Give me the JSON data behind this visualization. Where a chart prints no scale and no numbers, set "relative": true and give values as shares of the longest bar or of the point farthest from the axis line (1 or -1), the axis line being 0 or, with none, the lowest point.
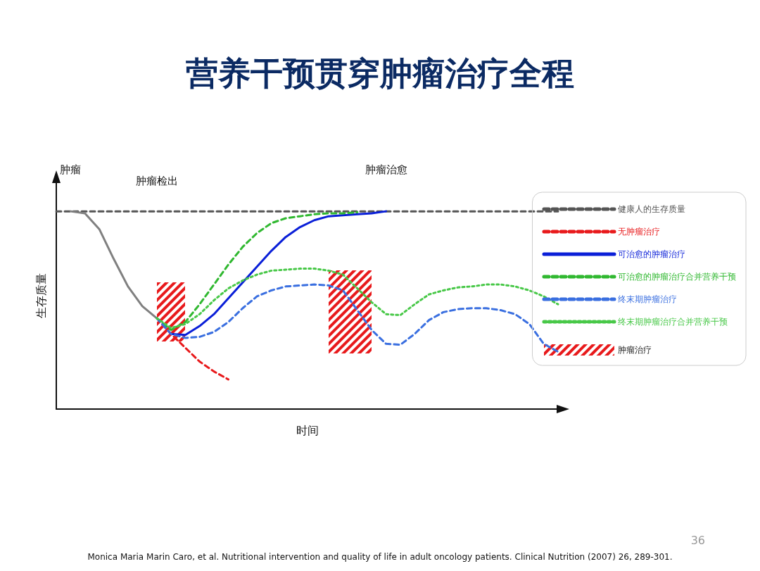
{
  "chart_data": {
    "type": "line",
    "title": "营养干预贯穿肿瘤治疗全程",
    "xlabel": "时间",
    "ylabel": "生存质量",
    "relative": true,
    "grid": false,
    "legend": "right",
    "marker": "none",
    "categories": [
      null,
      null,
      null,
      null,
      null,
      null,
      null,
      null,
      null,
      null,
      null,
      null,
      null,
      null,
      null,
      null,
      null,
      null,
      null,
      null,
      null,
      null,
      null,
      null,
      null,
      null,
      null,
      null,
      null,
      null,
      null,
      null,
      null,
      null,
      null,
      null
    ],
    "series": [
      {
        "name": "健康人的生存质量",
        "color": "#555555",
        "line_style": "dashed",
        "values": [
          1.0,
          1.0,
          1.0,
          1.0,
          1.0,
          1.0,
          1.0,
          1.0,
          1.0,
          1.0,
          1.0,
          1.0,
          1.0,
          1.0,
          1.0,
          1.0,
          1.0,
          1.0,
          1.0,
          1.0,
          1.0,
          1.0,
          1.0,
          1.0,
          1.0,
          1.0,
          1.0,
          1.0,
          1.0,
          1.0,
          1.0,
          1.0,
          1.0,
          1.0,
          1.0,
          1.0
        ]
      },
      {
        "color": "#808080",
        "line_style": "solid",
        "values": [
          null,
          1.0,
          0.99,
          0.91,
          0.76,
          0.62,
          0.52,
          0.46,
          null,
          null,
          null,
          null,
          null,
          null,
          null,
          null,
          null,
          null,
          null,
          null,
          null,
          null,
          null,
          null,
          null,
          null,
          null,
          null,
          null,
          null,
          null,
          null,
          null,
          null,
          null,
          null
        ]
      },
      {
        "name": "无肿瘤治疗",
        "color": "#e8191b",
        "line_style": "dashed",
        "values": [
          null,
          null,
          null,
          null,
          null,
          null,
          null,
          0.46,
          0.38,
          0.31,
          0.24,
          0.19,
          0.15,
          null,
          null,
          null,
          null,
          null,
          null,
          null,
          null,
          null,
          null,
          null,
          null,
          null,
          null,
          null,
          null,
          null,
          null,
          null,
          null,
          null,
          null,
          null
        ]
      },
      {
        "name": "可治愈的肿瘤治疗",
        "color": "#0a1fd8",
        "line_style": "solid",
        "values": [
          null,
          null,
          null,
          null,
          null,
          null,
          null,
          null,
          0.38,
          0.375,
          0.42,
          0.48,
          0.56,
          0.64,
          0.72,
          0.8,
          0.87,
          0.92,
          0.955,
          0.975,
          0.98,
          0.985,
          0.99,
          1.0,
          null,
          null,
          null,
          null,
          null,
          null,
          null,
          null,
          null,
          null,
          null,
          null
        ]
      },
      {
        "name": "可治愈的肿瘤治疗合并营养干预",
        "color": "#30b830",
        "line_style": "dashed",
        "values": [
          null,
          null,
          null,
          null,
          null,
          null,
          null,
          0.46,
          0.4,
          0.44,
          0.53,
          0.63,
          0.73,
          0.82,
          0.89,
          0.94,
          0.965,
          0.975,
          0.985,
          0.99,
          0.99,
          0.995,
          null,
          null,
          null,
          null,
          null,
          null,
          null,
          null,
          null,
          null,
          null,
          null,
          null,
          null
        ]
      },
      {
        "name": "终末期肿瘤治疗",
        "color": "#3a6fe0",
        "line_style": "dashed",
        "values": [
          null,
          null,
          null,
          null,
          null,
          null,
          null,
          0.46,
          0.38,
          0.36,
          0.365,
          0.39,
          0.44,
          0.51,
          0.57,
          0.6,
          0.62,
          0.625,
          0.63,
          0.625,
          0.6,
          0.5,
          0.4,
          0.33,
          0.325,
          0.38,
          0.45,
          0.49,
          0.505,
          0.51,
          0.51,
          0.5,
          0.48,
          0.43,
          0.33,
          0.29
        ]
      },
      {
        "name": "终末期肿瘤治疗合并营养干预",
        "color": "#48c848",
        "line_style": "dotted",
        "values": [
          null,
          null,
          null,
          null,
          null,
          null,
          null,
          0.46,
          0.41,
          0.43,
          0.48,
          0.55,
          0.61,
          0.65,
          0.68,
          0.7,
          0.705,
          0.71,
          0.71,
          0.7,
          0.68,
          0.61,
          0.54,
          0.48,
          0.475,
          0.53,
          0.58,
          0.6,
          0.615,
          0.62,
          0.63,
          0.63,
          0.62,
          0.6,
          0.57,
          0.53
        ]
      }
    ],
    "annotations": [
      "肿瘤",
      "肿瘤检出",
      "肿瘤治愈",
      "肿瘤治疗",
      "Monica Maria Marin Caro, et al. Nutritional intervention and quality of life in adult oncology patients. Clinical Nutrition (2007) 26, 289-301.",
      "36"
    ]
  }
}
